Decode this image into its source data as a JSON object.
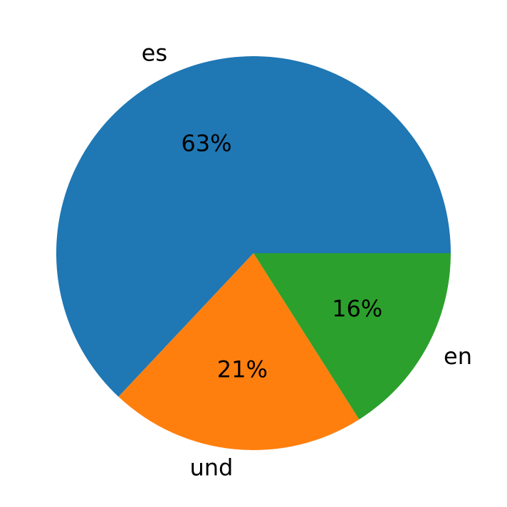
{
  "chart_data": {
    "type": "pie",
    "categories": [
      "es",
      "und",
      "en"
    ],
    "values": [
      63,
      21,
      16
    ],
    "value_labels": [
      "63%",
      "21%",
      "16%"
    ],
    "colors": [
      "#1f77b4",
      "#ff7f0e",
      "#2ca02c"
    ]
  }
}
